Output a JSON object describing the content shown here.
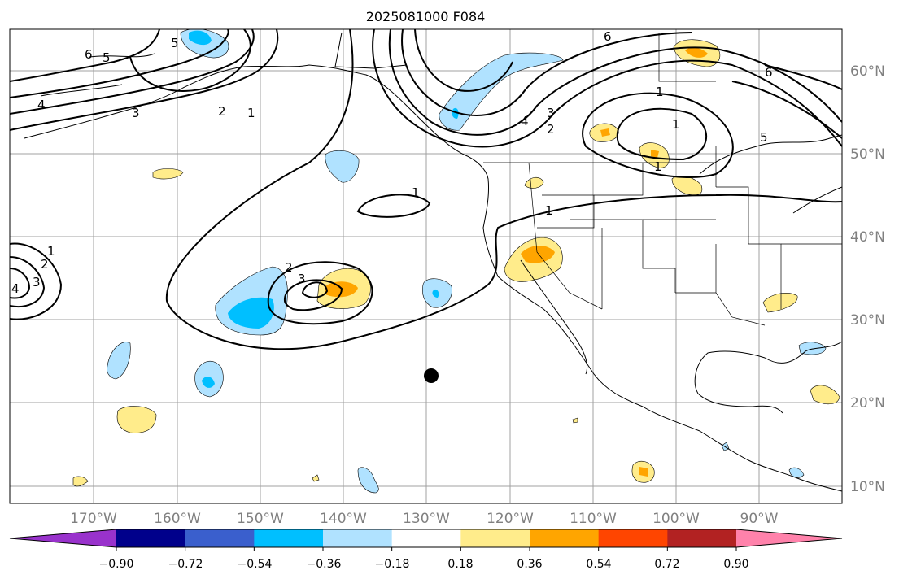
{
  "title": "2025081000 F084",
  "map": {
    "lon_labels": [
      "170°W",
      "160°W",
      "150°W",
      "140°W",
      "130°W",
      "120°W",
      "110°W",
      "100°W",
      "90°W"
    ],
    "lat_labels": [
      "60°N",
      "50°N",
      "40°N",
      "30°N",
      "20°N",
      "10°N"
    ],
    "contour_color": "#000000",
    "coast_color": "#000000",
    "grid_color": "#a0a0a0",
    "contour_labels": [
      "6",
      "5",
      "4",
      "3",
      "2",
      "1",
      "5",
      "6",
      "4",
      "3",
      "2",
      "1",
      "6",
      "5",
      "1",
      "1",
      "4",
      "3",
      "2",
      "1",
      "2",
      "3",
      "1",
      "1"
    ]
  },
  "colorbar": {
    "ticks": [
      "−0.90",
      "−0.72",
      "−0.54",
      "−0.36",
      "−0.18",
      "0.18",
      "0.36",
      "0.54",
      "0.72",
      "0.90"
    ],
    "colors": [
      "#9932cc",
      "#00008b",
      "#3a5fcd",
      "#00bfff",
      "#b0e2ff",
      "#ffffff",
      "#ffec8b",
      "#ffa500",
      "#ff4500",
      "#b22222",
      "#ff82ab"
    ]
  },
  "marker": {
    "color": "#000000"
  }
}
